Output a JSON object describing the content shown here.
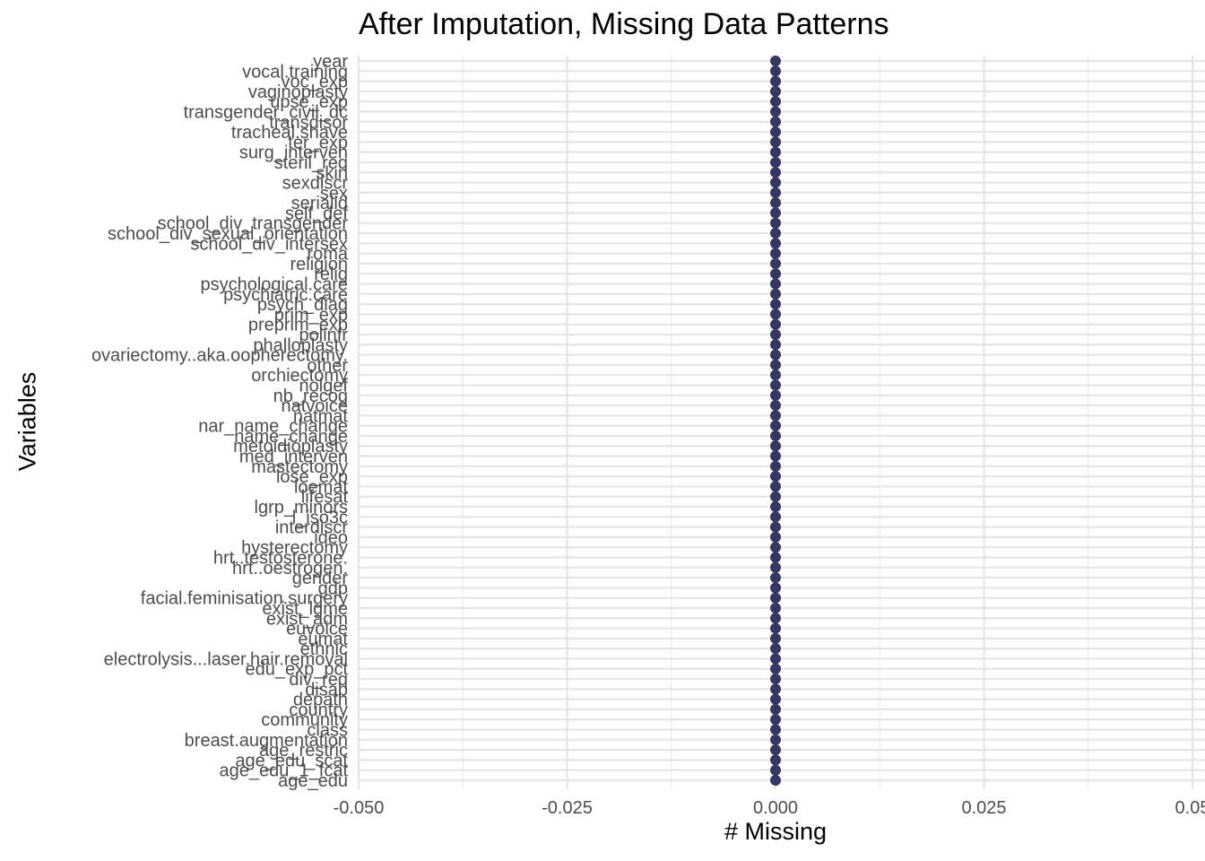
{
  "chart_data": {
    "type": "scatter",
    "title": "After Imputation, Missing Data Patterns",
    "xlabel": "# Missing",
    "ylabel": "Variables",
    "xlim": [
      -0.05,
      0.05
    ],
    "x_ticks": [
      -0.05,
      -0.025,
      0.0,
      0.025,
      0.05
    ],
    "x_tick_labels": [
      "-0.050",
      "-0.025",
      "0.000",
      "0.025",
      "0.05"
    ],
    "grid": true,
    "point_color": "#34385f",
    "categories": [
      "year",
      "vocal.training",
      "voc_exp",
      "vaginoplasty",
      "upse_exp",
      "transgender_civil_dc",
      "transdisor",
      "tracheal.shave",
      "ter_exp",
      "surg_interven",
      "steril_req",
      "skin",
      "sexdiscr",
      "sex",
      "serialid",
      "self_def",
      "school_div_transgender",
      "school_div_sexual_orientation",
      "school_div_intersex",
      "roma",
      "religion",
      "relig",
      "psychological.care",
      "psychiatric.care",
      "psych_diag",
      "prim_exp",
      "preprim_exp",
      "polinfr",
      "phalloplasty",
      "ovariectomy..aka.oopherectomy.",
      "other",
      "orchiectomy",
      "nolgef",
      "nb_recog",
      "natvoice",
      "natmat",
      "nar_name_change",
      "name_change",
      "metoidioplasty",
      "med_interven",
      "mastectomy",
      "lose_exp",
      "loemat",
      "lifesat",
      "lgrp_minors",
      "l_iso3c",
      "interdiscr",
      "ideo",
      "hysterectomy",
      "hrt..testosterone.",
      "hrt..oestrogen.",
      "gender",
      "gdp",
      "facial.feminisation.surgery",
      "exist_lgme",
      "exist_adm",
      "euvoice",
      "eumat",
      "ethnic",
      "electrolysis...laser.hair.removal",
      "edu_exp_pct",
      "div_req",
      "disab",
      "depath",
      "country",
      "community",
      "class",
      "breast.augmentation",
      "age_restric",
      "age_edu_scat",
      "age_edu_1_fcat",
      "age_edu"
    ],
    "values": [
      0,
      0,
      0,
      0,
      0,
      0,
      0,
      0,
      0,
      0,
      0,
      0,
      0,
      0,
      0,
      0,
      0,
      0,
      0,
      0,
      0,
      0,
      0,
      0,
      0,
      0,
      0,
      0,
      0,
      0,
      0,
      0,
      0,
      0,
      0,
      0,
      0,
      0,
      0,
      0,
      0,
      0,
      0,
      0,
      0,
      0,
      0,
      0,
      0,
      0,
      0,
      0,
      0,
      0,
      0,
      0,
      0,
      0,
      0,
      0,
      0,
      0,
      0,
      0,
      0,
      0,
      0,
      0,
      0,
      0,
      0,
      0
    ]
  }
}
